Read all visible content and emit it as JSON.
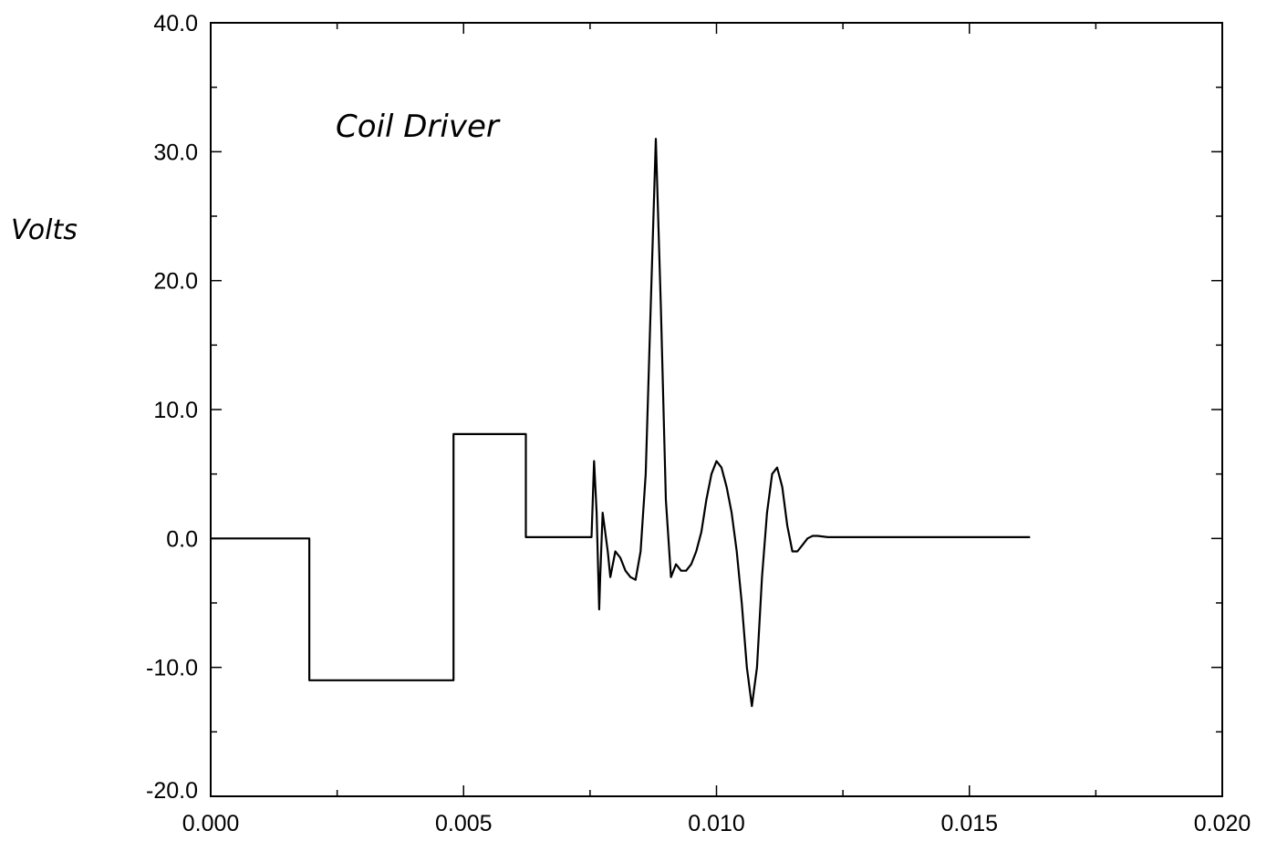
{
  "chart_data": {
    "type": "line",
    "title": "",
    "annotation": "Coil Driver",
    "xlabel": "",
    "ylabel": "Volts",
    "xlim": [
      0.0,
      0.02
    ],
    "ylim": [
      -20.0,
      40.0
    ],
    "x_ticks": [
      0.0,
      0.005,
      0.01,
      0.015,
      0.02
    ],
    "x_tick_labels": [
      "0.000",
      "0.005",
      "0.010",
      "0.015",
      "0.020"
    ],
    "y_ticks": [
      -20,
      -10,
      0,
      10,
      20,
      30,
      40
    ],
    "y_tick_labels": [
      "-20.0",
      "-10.0",
      "0.0",
      "10.0",
      "20.0",
      "30.0",
      "40.0"
    ],
    "grid": false,
    "legend": "none",
    "series": [
      {
        "x": [
          0.0,
          0.00195,
          0.00195,
          0.0048,
          0.0048,
          0.00623,
          0.00623,
          0.00753,
          0.00758,
          0.00763,
          0.00768,
          0.0077,
          0.00775,
          0.00785,
          0.0079,
          0.008,
          0.0081,
          0.0082,
          0.0083,
          0.0084,
          0.0085,
          0.0086,
          0.0087,
          0.0088,
          0.0089,
          0.009,
          0.0091,
          0.0092,
          0.0093,
          0.0094,
          0.0095,
          0.0096,
          0.0097,
          0.0098,
          0.0099,
          0.01,
          0.0101,
          0.0102,
          0.0103,
          0.0104,
          0.0105,
          0.0106,
          0.0107,
          0.0108,
          0.0109,
          0.011,
          0.0111,
          0.0112,
          0.0113,
          0.0114,
          0.0115,
          0.0116,
          0.0117,
          0.0118,
          0.0119,
          0.012,
          0.0122,
          0.0124,
          0.0126,
          0.0128,
          0.013,
          0.014,
          0.015,
          0.0162
        ],
        "y": [
          0.0,
          0.0,
          -11.0,
          -11.0,
          8.1,
          8.1,
          0.1,
          0.1,
          6.0,
          2.0,
          -5.5,
          -3.0,
          2.0,
          -1.0,
          -3.0,
          -1.0,
          -1.5,
          -2.5,
          -3.0,
          -3.2,
          -1.0,
          5.0,
          18.0,
          31.0,
          18.0,
          3.0,
          -3.0,
          -2.0,
          -2.5,
          -2.5,
          -2.0,
          -1.0,
          0.5,
          3.0,
          5.0,
          6.0,
          5.5,
          4.0,
          2.0,
          -1.0,
          -5.0,
          -10.0,
          -13.0,
          -10.0,
          -3.0,
          2.0,
          5.0,
          5.5,
          4.0,
          1.0,
          -1.0,
          -1.0,
          -0.5,
          0.0,
          0.2,
          0.2,
          0.1,
          0.1,
          0.1,
          0.1,
          0.1,
          0.1,
          0.1,
          0.1
        ]
      }
    ],
    "colors": {
      "line": "#000000",
      "axes": "#000000"
    }
  }
}
